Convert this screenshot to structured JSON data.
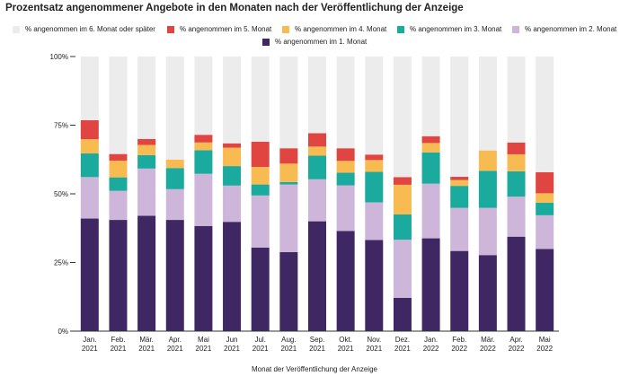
{
  "title": "Prozentsatz angenommener Angebote in den Monaten nach der Veröffentlichung der Anzeige",
  "chart_data": {
    "type": "bar",
    "stacked": true,
    "categories": [
      [
        "Jan.",
        "2021"
      ],
      [
        "Feb.",
        "2021"
      ],
      [
        "Mär.",
        "2021"
      ],
      [
        "Apr.",
        "2021"
      ],
      [
        "Mai",
        "2021"
      ],
      [
        "Jun",
        "2021"
      ],
      [
        "Jul.",
        "2021"
      ],
      [
        "Aug.",
        "2021"
      ],
      [
        "Sep.",
        "2021"
      ],
      [
        "Okt.",
        "2021"
      ],
      [
        "Nov.",
        "2021"
      ],
      [
        "Dez.",
        "2021"
      ],
      [
        "Jan.",
        "2022"
      ],
      [
        "Feb.",
        "2022"
      ],
      [
        "Mär.",
        "2022"
      ],
      [
        "Apr.",
        "2022"
      ],
      [
        "Mai",
        "2022"
      ]
    ],
    "series": [
      {
        "name": "% angenommen im 1. Monat",
        "color": "#3f2764",
        "values": [
          41,
          40.5,
          42,
          40.5,
          38.3,
          39.8,
          30.4,
          28.8,
          40,
          36.5,
          33.2,
          12.1,
          33.8,
          29.2,
          27.7,
          34.4,
          29.9
        ]
      },
      {
        "name": "% angenommen im 2. Monat",
        "color": "#cdb6da",
        "values": [
          15.1,
          10.6,
          17.2,
          11.2,
          19,
          13.2,
          19,
          24.6,
          15.3,
          16.6,
          13.7,
          21.2,
          19.9,
          15.7,
          17.2,
          14.6,
          12.3
        ]
      },
      {
        "name": "% angenommen im 3. Monat",
        "color": "#1aaa9e",
        "values": [
          8.6,
          4.9,
          4.9,
          7.7,
          8.6,
          7.1,
          4,
          0.9,
          8.6,
          4.6,
          11.1,
          9.2,
          11.4,
          8,
          13.5,
          9.2,
          4.6
        ]
      },
      {
        "name": "% angenommen im 4. Monat",
        "color": "#f7bb52",
        "values": [
          5.2,
          6.1,
          3.7,
          3.1,
          2.8,
          6.7,
          6.4,
          6.7,
          3.3,
          4.3,
          4.3,
          10.8,
          3.4,
          2.1,
          7.4,
          6.2,
          3.4
        ]
      },
      {
        "name": "% angenommen im 5. Monat",
        "color": "#e04541",
        "values": [
          6.9,
          2.4,
          2.2,
          0,
          2.8,
          1.6,
          9.2,
          5.6,
          4.9,
          4.6,
          2,
          2.8,
          2.5,
          1.2,
          0,
          4.3,
          7.7
        ]
      },
      {
        "name": "% angenommen im 6. Monat oder später",
        "color": "#ececec",
        "values": [
          23.2,
          35.5,
          30,
          37.5,
          28.5,
          31.6,
          31,
          33.4,
          27.9,
          33.4,
          35.7,
          43.9,
          29,
          43.8,
          34.2,
          31.3,
          42.1
        ]
      }
    ],
    "legend_order": [
      5,
      4,
      3,
      2,
      0
    ],
    "yticks": [
      "0%",
      "25%",
      "50%",
      "75%",
      "100%"
    ],
    "ylim": [
      0,
      100
    ],
    "xlabel": "Monat der Veröffentlichung der Anzeige",
    "ylabel": "",
    "grid": false,
    "legend_position": "top"
  }
}
